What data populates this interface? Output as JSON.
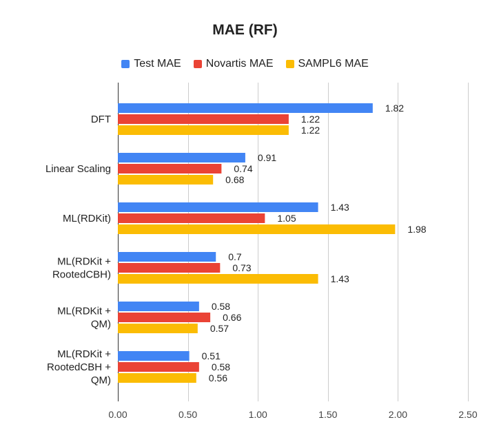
{
  "chart_data": {
    "type": "bar",
    "orientation": "horizontal",
    "title": "MAE (RF)",
    "categories": [
      "DFT",
      "Linear Scaling",
      "ML(RDKit)",
      "ML(RDKit + RootedCBH)",
      "ML(RDKit + QM)",
      "ML(RDKit + RootedCBH + QM)"
    ],
    "category_lines": [
      [
        "DFT"
      ],
      [
        "Linear Scaling"
      ],
      [
        "ML(RDKit)"
      ],
      [
        "ML(RDKit +",
        "RootedCBH)"
      ],
      [
        "ML(RDKit +",
        "QM)"
      ],
      [
        "ML(RDKit +",
        "RootedCBH +",
        "QM)"
      ]
    ],
    "series": [
      {
        "name": "Test MAE",
        "color": "#4285f4",
        "values": [
          1.82,
          0.91,
          1.43,
          0.7,
          0.58,
          0.51
        ]
      },
      {
        "name": "Novartis MAE",
        "color": "#ea4335",
        "values": [
          1.22,
          0.74,
          1.05,
          0.73,
          0.66,
          0.58
        ]
      },
      {
        "name": "SAMPL6 MAE",
        "color": "#fbbc04",
        "values": [
          1.22,
          0.68,
          1.98,
          1.43,
          0.57,
          0.56
        ]
      }
    ],
    "xlim": [
      0,
      2.5
    ],
    "xticks": [
      "0.00",
      "0.50",
      "1.00",
      "1.50",
      "2.00",
      "2.50"
    ],
    "xlabel": "",
    "ylabel": "",
    "grid": true,
    "legend_position": "top"
  }
}
